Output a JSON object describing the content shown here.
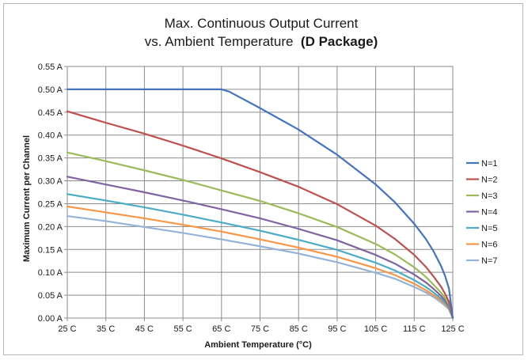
{
  "chart_data": {
    "type": "line",
    "title_line1": "Max. Continuous Output Current",
    "title_line2_prefix": "vs. Ambient Temperature  ",
    "title_line2_bold": "(D Package)",
    "xlabel": "Ambient Temperature (°C)",
    "ylabel": "Maximum Current per Channel",
    "xlim": [
      25,
      125
    ],
    "ylim": [
      0,
      0.55
    ],
    "grid": true,
    "legend_position": "right",
    "x_ticks": [
      25,
      35,
      45,
      55,
      65,
      75,
      85,
      95,
      105,
      115,
      125
    ],
    "x_tick_labels": [
      "25 C",
      "35 C",
      "45 C",
      "55 C",
      "65 C",
      "75 C",
      "85 C",
      "95 C",
      "105 C",
      "115 C",
      "125 C"
    ],
    "y_ticks": [
      0,
      0.05,
      0.1,
      0.15,
      0.2,
      0.25,
      0.3,
      0.35,
      0.4,
      0.45,
      0.5,
      0.55
    ],
    "y_tick_labels": [
      "0.00 A",
      "0.05 A",
      "0.10 A",
      "0.15 A",
      "0.20 A",
      "0.25 A",
      "0.30 A",
      "0.35 A",
      "0.40 A",
      "0.45 A",
      "0.50 A",
      "0.55 A"
    ],
    "series": [
      {
        "name": "N=1",
        "color": "#4472c4",
        "x": [
          25,
          35,
          45,
          55,
          65,
          67,
          75,
          85,
          95,
          105,
          110,
          115,
          118,
          120,
          122,
          123,
          124,
          125
        ],
        "y": [
          0.5,
          0.5,
          0.5,
          0.5,
          0.5,
          0.495,
          0.459,
          0.412,
          0.357,
          0.292,
          0.253,
          0.206,
          0.173,
          0.146,
          0.113,
          0.092,
          0.065,
          0.0
        ]
      },
      {
        "name": "N=2",
        "color": "#c0504d",
        "x": [
          25,
          35,
          45,
          55,
          65,
          75,
          85,
          95,
          105,
          110,
          115,
          118,
          120,
          122,
          123,
          124,
          125
        ],
        "y": [
          0.452,
          0.427,
          0.403,
          0.377,
          0.349,
          0.319,
          0.287,
          0.249,
          0.202,
          0.173,
          0.138,
          0.112,
          0.091,
          0.068,
          0.053,
          0.036,
          0.0
        ]
      },
      {
        "name": "N=3",
        "color": "#9bbb59",
        "x": [
          25,
          35,
          45,
          55,
          65,
          75,
          85,
          95,
          105,
          110,
          115,
          118,
          120,
          122,
          123,
          124,
          125
        ],
        "y": [
          0.362,
          0.343,
          0.323,
          0.302,
          0.279,
          0.256,
          0.229,
          0.199,
          0.162,
          0.139,
          0.111,
          0.09,
          0.073,
          0.055,
          0.044,
          0.03,
          0.0
        ]
      },
      {
        "name": "N=4",
        "color": "#8064a2",
        "x": [
          25,
          35,
          45,
          55,
          65,
          75,
          85,
          95,
          105,
          110,
          115,
          118,
          120,
          122,
          123,
          124,
          125
        ],
        "y": [
          0.309,
          0.292,
          0.275,
          0.257,
          0.238,
          0.218,
          0.195,
          0.17,
          0.138,
          0.119,
          0.095,
          0.078,
          0.064,
          0.048,
          0.038,
          0.026,
          0.0
        ]
      },
      {
        "name": "N=5",
        "color": "#4bacc6",
        "x": [
          25,
          35,
          45,
          55,
          65,
          75,
          85,
          95,
          105,
          110,
          115,
          118,
          120,
          122,
          123,
          124,
          125
        ],
        "y": [
          0.271,
          0.257,
          0.242,
          0.226,
          0.209,
          0.191,
          0.171,
          0.149,
          0.121,
          0.104,
          0.083,
          0.068,
          0.056,
          0.042,
          0.033,
          0.023,
          0.0
        ]
      },
      {
        "name": "N=6",
        "color": "#f79646",
        "x": [
          25,
          35,
          45,
          55,
          65,
          75,
          85,
          95,
          105,
          110,
          115,
          118,
          120,
          122,
          123,
          124,
          125
        ],
        "y": [
          0.244,
          0.231,
          0.218,
          0.204,
          0.189,
          0.172,
          0.154,
          0.134,
          0.109,
          0.094,
          0.075,
          0.061,
          0.05,
          0.038,
          0.03,
          0.021,
          0.0
        ]
      },
      {
        "name": "N=7",
        "color": "#95b3d7",
        "x": [
          25,
          35,
          45,
          55,
          65,
          75,
          85,
          95,
          105,
          110,
          115,
          118,
          120,
          122,
          123,
          124,
          125
        ],
        "y": [
          0.223,
          0.212,
          0.199,
          0.186,
          0.172,
          0.157,
          0.141,
          0.122,
          0.099,
          0.086,
          0.068,
          0.056,
          0.046,
          0.034,
          0.027,
          0.019,
          0.0
        ]
      }
    ]
  }
}
